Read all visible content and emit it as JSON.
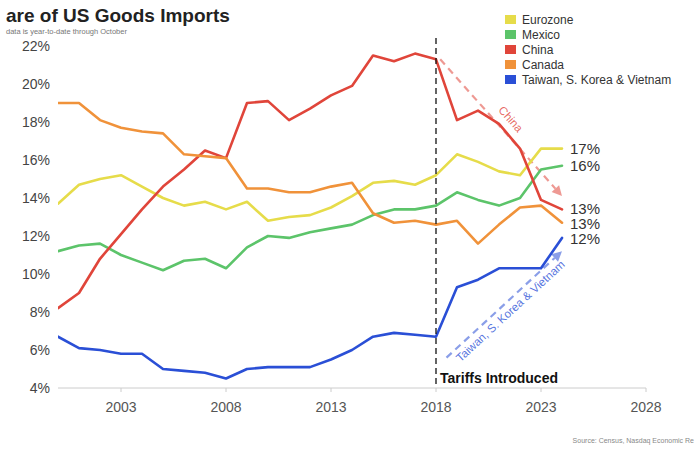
{
  "chart_data": {
    "type": "line",
    "title": "are of US Goods Imports",
    "subtitle": "data is year-to-date through October",
    "source": "Source: Census, Nasdaq Economic Re",
    "x": [
      2000,
      2001,
      2002,
      2003,
      2004,
      2005,
      2006,
      2007,
      2008,
      2009,
      2010,
      2011,
      2012,
      2013,
      2014,
      2015,
      2016,
      2017,
      2018,
      2019,
      2020,
      2021,
      2022,
      2023,
      2024
    ],
    "series": [
      {
        "name": "Eurozone",
        "color": "#e6dc4a",
        "end_label": "17%",
        "values": [
          13.7,
          14.7,
          15.0,
          15.2,
          14.6,
          14.0,
          13.6,
          13.8,
          13.4,
          13.8,
          12.8,
          13.0,
          13.1,
          13.5,
          14.1,
          14.8,
          14.9,
          14.7,
          15.2,
          16.3,
          15.9,
          15.4,
          15.2,
          16.6,
          16.6
        ]
      },
      {
        "name": "Mexico",
        "color": "#5cc46a",
        "end_label": "16%",
        "values": [
          11.2,
          11.5,
          11.6,
          11.0,
          10.6,
          10.2,
          10.7,
          10.8,
          10.3,
          11.4,
          12.0,
          11.9,
          12.2,
          12.4,
          12.6,
          13.1,
          13.4,
          13.4,
          13.6,
          14.3,
          13.9,
          13.6,
          14.0,
          15.5,
          15.7
        ]
      },
      {
        "name": "China",
        "color": "#e0453a",
        "end_label": "13%",
        "values": [
          8.2,
          9.0,
          10.8,
          12.1,
          13.4,
          14.6,
          15.5,
          16.5,
          16.1,
          19.0,
          19.1,
          18.1,
          18.7,
          19.4,
          19.9,
          21.5,
          21.2,
          21.6,
          21.3,
          18.1,
          18.6,
          17.9,
          16.6,
          13.9,
          13.4
        ]
      },
      {
        "name": "Canada",
        "color": "#f0923a",
        "end_label": "13%",
        "values": [
          19.0,
          19.0,
          18.1,
          17.7,
          17.5,
          17.4,
          16.3,
          16.2,
          16.1,
          14.5,
          14.5,
          14.3,
          14.3,
          14.6,
          14.8,
          13.2,
          12.7,
          12.8,
          12.6,
          12.8,
          11.6,
          12.6,
          13.5,
          13.6,
          12.7
        ]
      },
      {
        "name": "Taiwan, S. Korea & Vietnam",
        "color": "#2a4fd6",
        "end_label": "12%",
        "values": [
          6.7,
          6.1,
          6.0,
          5.8,
          5.8,
          5.0,
          4.9,
          4.8,
          4.5,
          5.0,
          5.1,
          5.1,
          5.1,
          5.5,
          6.0,
          6.7,
          6.9,
          6.8,
          6.7,
          9.3,
          9.7,
          10.3,
          10.3,
          10.3,
          11.9
        ]
      }
    ],
    "xlim": [
      2000,
      2028
    ],
    "xticks": [
      2003,
      2008,
      2013,
      2018,
      2023,
      2028
    ],
    "ylim": [
      4,
      22
    ],
    "yticks": [
      {
        "value": 4,
        "label": "4%"
      },
      {
        "value": 6,
        "label": "6%"
      },
      {
        "value": 8,
        "label": "8%"
      },
      {
        "value": 10,
        "label": "10%"
      },
      {
        "value": 12,
        "label": "12%"
      },
      {
        "value": 14,
        "label": "14%"
      },
      {
        "value": 16,
        "label": "16%"
      },
      {
        "value": 18,
        "label": "18%"
      },
      {
        "value": 20,
        "label": "20%"
      },
      {
        "value": 22,
        "label": "22%"
      }
    ],
    "grid": false,
    "legend": "top-right",
    "annotations": [
      {
        "text": "Tariffs Introduced",
        "x": 2018
      },
      {
        "text": "China",
        "x": [
          2018.2,
          2024
        ],
        "y": [
          21.3,
          14.1
        ]
      },
      {
        "text": "Taiwan, S. Korea & Vietnam",
        "x": [
          2018.5,
          2024
        ],
        "y": [
          5.6,
          11.2
        ]
      }
    ]
  }
}
